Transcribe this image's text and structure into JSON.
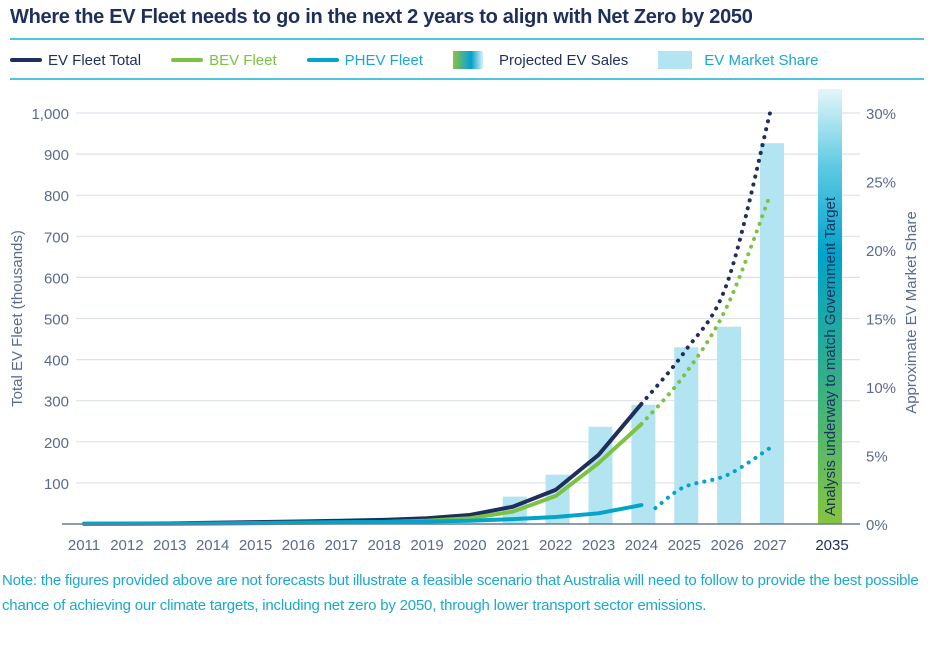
{
  "title": "Where the EV Fleet needs to go in the next 2 years to align with Net Zero by 2050",
  "legend": [
    {
      "label": "EV Fleet Total",
      "kind": "line",
      "color": "#1e2f5c",
      "text_color": "#1e2f5c"
    },
    {
      "label": "BEV Fleet",
      "kind": "line",
      "color": "#7dc243",
      "text_color": "#7dc243"
    },
    {
      "label": "PHEV Fleet",
      "kind": "line",
      "color": "#00a5c9",
      "text_color": "#1aa9cc"
    },
    {
      "label": "Projected EV Sales",
      "kind": "gradient",
      "text_color": "#1e2f5c"
    },
    {
      "label": "EV Market Share",
      "kind": "box",
      "color": "#b3e4f1",
      "text_color": "#1aa9cc"
    }
  ],
  "colors": {
    "total": "#1e2f5c",
    "bev": "#7dc243",
    "phev": "#00a5c9",
    "bar": "#b3e4f1",
    "grid": "#dde2ea",
    "axis_text": "#5a6b8c",
    "note": "#1aa9cc",
    "rule": "#4fc3df"
  },
  "chart_data": {
    "type": "line+bar",
    "title": "Where the EV Fleet needs to go in the next 2 years to align with Net Zero by 2050",
    "categories": [
      "2011",
      "2012",
      "2013",
      "2014",
      "2015",
      "2016",
      "2017",
      "2018",
      "2019",
      "2020",
      "2021",
      "2022",
      "2023",
      "2024",
      "2025",
      "2026",
      "2027",
      "2035"
    ],
    "ylabel": "Total EV Fleet (thousands)",
    "y2label": "Approximate EV Market Share",
    "ylim": [
      0,
      1000
    ],
    "y_ticks": [
      "100",
      "200",
      "300",
      "400",
      "500",
      "600",
      "700",
      "800",
      "900",
      "1,000"
    ],
    "y2lim": [
      0,
      30
    ],
    "y2_ticks": [
      "0%",
      "5%",
      "10%",
      "15%",
      "20%",
      "25%",
      "30%"
    ],
    "grid": true,
    "legend_position": "top",
    "series": [
      {
        "name": "EV Fleet Total",
        "axis": "left",
        "type": "line",
        "actual": {
          "x": [
            "2011",
            "2012",
            "2013",
            "2014",
            "2015",
            "2016",
            "2017",
            "2018",
            "2019",
            "2020",
            "2021",
            "2022",
            "2023",
            "2024"
          ],
          "values": [
            0.5,
            1,
            1.5,
            3,
            4.5,
            6,
            8,
            10,
            14,
            22,
            42,
            83,
            168,
            292
          ]
        },
        "projected": {
          "x": [
            "2024",
            "2025",
            "2026",
            "2027"
          ],
          "values": [
            292,
            418,
            586,
            1000
          ]
        }
      },
      {
        "name": "BEV Fleet",
        "axis": "left",
        "type": "line",
        "actual": {
          "x": [
            "2011",
            "2012",
            "2013",
            "2014",
            "2015",
            "2016",
            "2017",
            "2018",
            "2019",
            "2020",
            "2021",
            "2022",
            "2023",
            "2024"
          ],
          "values": [
            0.2,
            0.4,
            0.6,
            1,
            1.8,
            2.5,
            3.5,
            5,
            8,
            14,
            30,
            68,
            148,
            243
          ]
        },
        "projected": {
          "x": [
            "2024",
            "2025",
            "2026",
            "2027"
          ],
          "values": [
            243,
            362,
            530,
            800
          ]
        }
      },
      {
        "name": "PHEV Fleet",
        "axis": "left",
        "type": "line",
        "actual": {
          "x": [
            "2011",
            "2012",
            "2013",
            "2014",
            "2015",
            "2016",
            "2017",
            "2018",
            "2019",
            "2020",
            "2021",
            "2022",
            "2023",
            "2024"
          ],
          "values": [
            0.3,
            0.6,
            0.9,
            1.5,
            2.5,
            3.5,
            4.5,
            5,
            6,
            8,
            12,
            17,
            26,
            46
          ]
        },
        "projected": {
          "x": [
            "2025",
            "2026",
            "2027"
          ],
          "values": [
            90,
            119,
            185
          ]
        }
      },
      {
        "name": "EV Market Share",
        "axis": "right",
        "type": "bar",
        "x": [
          "2021",
          "2022",
          "2023",
          "2024",
          "2025",
          "2026",
          "2027"
        ],
        "values": [
          2.0,
          3.6,
          7.1,
          8.7,
          12.9,
          14.4,
          27.8
        ]
      }
    ],
    "annotations": [
      {
        "x": "2035",
        "text": "Analysis underway to match Government Target",
        "kind": "gradient-bar (Projected EV Sales)"
      }
    ]
  },
  "note": "Note: the figures provided above are not forecasts but illustrate a feasible scenario that Australia will need to follow to provide the best possible chance of achieving our climate targets, including net zero by 2050, through lower transport sector emissions."
}
